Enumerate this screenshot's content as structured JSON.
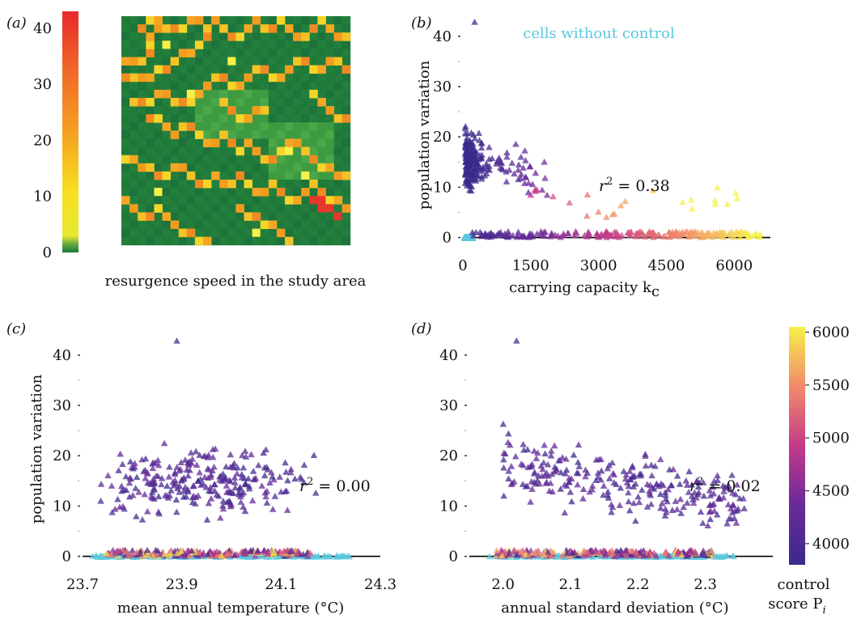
{
  "panels": {
    "a": {
      "label": "(a)",
      "caption": "resurgence speed in the study area"
    },
    "b": {
      "label": "(b)"
    },
    "c": {
      "label": "(c)"
    },
    "d": {
      "label": "(d)"
    }
  },
  "colors": {
    "map_green": "#1f7a3a",
    "map_light_green": "#4caa44",
    "scatter_control_low": "#3b2f8f",
    "scatter_control_high": "#f4e84a",
    "without_control": "#5bc8de",
    "fit_line": "#000000"
  },
  "chart_data": [
    {
      "panel": "a",
      "type": "heatmap",
      "colorbar": {
        "ticks": [
          "0",
          "10",
          "20",
          "30",
          "40"
        ],
        "range": [
          0,
          43
        ]
      },
      "caption": "resurgence speed in the study area"
    },
    {
      "panel": "b",
      "type": "scatter",
      "xlabel": "carrying capacity k",
      "xlabel_sub": "c",
      "ylabel": "population variation",
      "xlim": [
        0,
        6800
      ],
      "ylim": [
        -2,
        44
      ],
      "xticks": [
        "0",
        "1500",
        "3000",
        "4500",
        "6000"
      ],
      "yticks": [
        "0",
        "10",
        "20",
        "30",
        "40"
      ],
      "legend": "cells without control",
      "annotation": {
        "r2": "= 0.38"
      }
    },
    {
      "panel": "c",
      "type": "scatter",
      "xlabel": "mean annual temperature (°C)",
      "ylabel": "population variation",
      "xlim": [
        23.7,
        24.3
      ],
      "ylim": [
        -2,
        44
      ],
      "xticks": [
        "23.7",
        "23.9",
        "24.1",
        "24.3"
      ],
      "yticks": [
        "0",
        "10",
        "20",
        "30",
        "40"
      ],
      "annotation": {
        "r2": "= 0.00"
      }
    },
    {
      "panel": "d",
      "type": "scatter",
      "xlabel": "annual standard deviation (°C)",
      "xlim": [
        1.95,
        2.4
      ],
      "ylim": [
        -2,
        44
      ],
      "xticks": [
        "2.0",
        "2.1",
        "2.2",
        "2.3"
      ],
      "yticks": [
        "0",
        "10",
        "20",
        "30",
        "40"
      ],
      "annotation": {
        "r2": "= 0.02"
      }
    },
    {
      "type": "colorbar",
      "title_line1": "control",
      "title_line2": "score P",
      "title_sub": "i",
      "ticks": [
        "4000",
        "4500",
        "5000",
        "5500",
        "6000"
      ],
      "range": [
        3800,
        6050
      ]
    }
  ]
}
